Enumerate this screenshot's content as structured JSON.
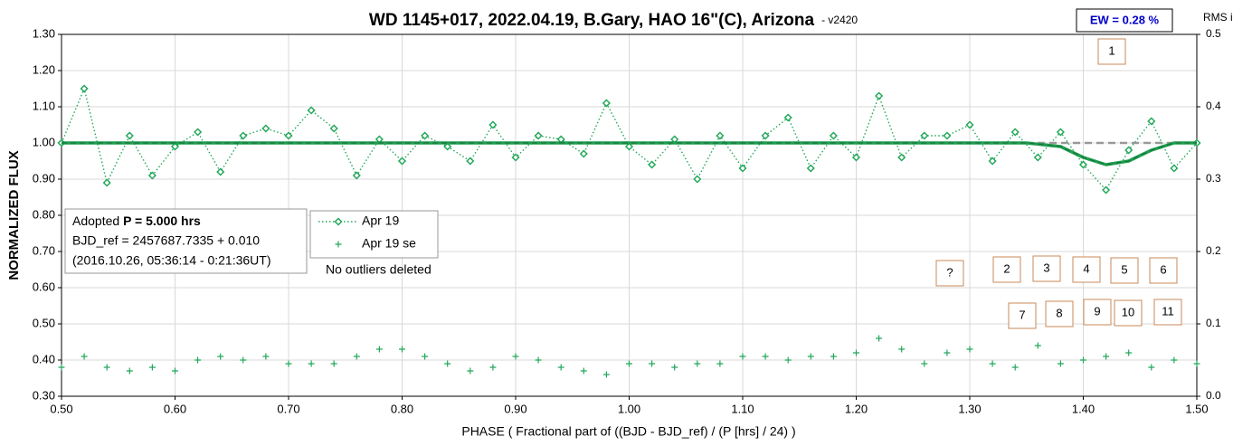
{
  "chart_data": {
    "type": "scatter",
    "title": "WD 1145+017, 2022.04.19, B.Gary, HAO 16\"(C), Arizona",
    "subtitle": "- v2420",
    "x_label": "PHASE ( Fractional part of ((BJD - BJD_ref) / (P [hrs] / 24) )",
    "y_label": "NORMALIZED FLUX",
    "y2_label": "RMS i",
    "ew_label": "EW = 0.28 %",
    "info": [
      "Adopted ",
      "P = 5.000 hrs",
      "BJD_ref = 2457687.7335 + 0.010",
      "(2016.10.26, 05:36:14 - 0:21:36UT)"
    ],
    "note": "No outliers deleted",
    "annotations": [
      "1",
      "?",
      "2",
      "3",
      "4",
      "5",
      "6",
      "7",
      "8",
      "9",
      "10",
      "11"
    ],
    "grid": true,
    "xlim": [
      0.5,
      1.5
    ],
    "xticks": [
      {
        "value": 0.5,
        "label": "0.50"
      },
      {
        "value": 0.6,
        "label": "0.60"
      },
      {
        "value": 0.7,
        "label": "0.70"
      },
      {
        "value": 0.8,
        "label": "0.80"
      },
      {
        "value": 0.9,
        "label": "0.90"
      },
      {
        "value": 1.0,
        "label": "1.00"
      },
      {
        "value": 1.1,
        "label": "1.10"
      },
      {
        "value": 1.2,
        "label": "1.20"
      },
      {
        "value": 1.3,
        "label": "1.30"
      },
      {
        "value": 1.4,
        "label": "1.40"
      },
      {
        "value": 1.5,
        "label": "1.50"
      }
    ],
    "ylim": [
      0.3,
      1.3
    ],
    "yticks": [
      {
        "value": 0.3,
        "label": "0.30"
      },
      {
        "value": 0.4,
        "label": "0.40"
      },
      {
        "value": 0.5,
        "label": "0.50"
      },
      {
        "value": 0.6,
        "label": "0.60"
      },
      {
        "value": 0.7,
        "label": "0.70"
      },
      {
        "value": 0.8,
        "label": "0.80"
      },
      {
        "value": 0.9,
        "label": "0.90"
      },
      {
        "value": 1.0,
        "label": "1.00"
      },
      {
        "value": 1.1,
        "label": "1.10"
      },
      {
        "value": 1.2,
        "label": "1.20"
      },
      {
        "value": 1.3,
        "label": "1.30"
      }
    ],
    "y2lim": [
      0,
      0.5
    ],
    "y2ticks": [
      {
        "value": 0,
        "label": "0.0"
      },
      0.1,
      0.2,
      0.3,
      0.4,
      0.5
    ],
    "x": [
      0.5,
      0.52,
      0.54,
      0.56,
      0.58,
      0.6,
      0.62,
      0.64,
      0.66,
      0.68,
      0.7,
      0.72,
      0.74,
      0.76,
      0.78,
      0.8,
      0.82,
      0.84,
      0.86,
      0.88,
      0.9,
      0.92,
      0.94,
      0.96,
      0.98,
      1.0,
      1.02,
      1.04,
      1.06,
      1.08,
      1.1,
      1.12,
      1.14,
      1.16,
      1.18,
      1.2,
      1.22,
      1.24,
      1.26,
      1.28,
      1.3,
      1.32,
      1.34,
      1.36,
      1.38,
      1.4,
      1.42,
      1.44,
      1.46,
      1.48,
      1.5
    ],
    "series": [
      {
        "name": "Apr 19",
        "color": "#22a85a",
        "marker": "diamond",
        "values": [
          1.0,
          1.15,
          0.89,
          1.02,
          0.91,
          0.99,
          1.03,
          0.92,
          1.02,
          1.04,
          1.02,
          1.09,
          1.04,
          0.91,
          1.01,
          0.95,
          1.02,
          0.99,
          0.95,
          1.05,
          0.96,
          1.02,
          1.01,
          0.97,
          1.11,
          0.99,
          0.94,
          1.01,
          0.9,
          1.02,
          0.93,
          1.02,
          1.07,
          0.93,
          1.02,
          0.96,
          1.13,
          0.96,
          1.02,
          1.02,
          1.05,
          0.95,
          1.03,
          0.96,
          1.03,
          0.94,
          0.87,
          0.98,
          1.06,
          0.93,
          1.0
        ]
      },
      {
        "name": "Apr 19 se",
        "color": "#22a85a",
        "marker": "plus",
        "values": [
          0.38,
          0.41,
          0.38,
          0.37,
          0.38,
          0.37,
          0.4,
          0.41,
          0.4,
          0.41,
          0.39,
          0.39,
          0.39,
          0.41,
          0.43,
          0.43,
          0.41,
          0.39,
          0.37,
          0.38,
          0.41,
          0.4,
          0.38,
          0.37,
          0.36,
          0.39,
          0.39,
          0.38,
          0.39,
          0.39,
          0.41,
          0.41,
          0.4,
          0.41,
          0.41,
          0.42,
          0.46,
          0.43,
          0.39,
          0.42,
          0.43,
          0.39,
          0.38,
          0.44,
          0.39,
          0.4,
          0.41,
          0.42,
          0.38,
          0.4,
          0.39
        ]
      },
      {
        "color": "#999999",
        "marker": "dash",
        "x": [
          0.5,
          1.5
        ],
        "values": [
          1.0,
          1.0
        ]
      },
      {
        "color": "#1e9e4e",
        "marker": "model",
        "x": [
          0.5,
          1.35,
          1.38,
          1.4,
          1.42,
          1.44,
          1.46,
          1.48,
          1.5
        ],
        "values": [
          1.0,
          1.0,
          0.99,
          0.96,
          0.94,
          0.95,
          0.98,
          1.0,
          1.0
        ]
      }
    ]
  }
}
